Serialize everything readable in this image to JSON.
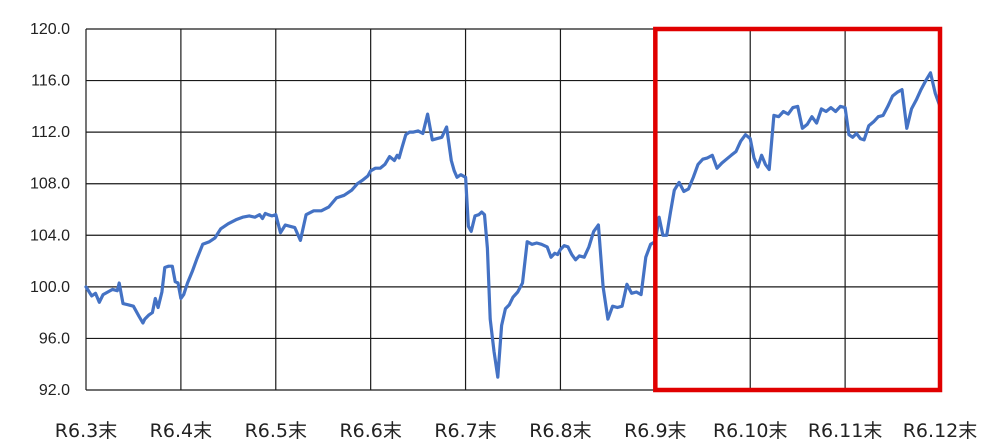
{
  "chart_data": {
    "type": "line",
    "title": "",
    "xlabel": "",
    "ylabel": "",
    "ylim": [
      92,
      120
    ],
    "y_ticks": [
      "92.0",
      "96.0",
      "100.0",
      "104.0",
      "108.0",
      "112.0",
      "116.0",
      "120.0"
    ],
    "x_ticks": [
      "R6.3末",
      "R6.4末",
      "R6.5末",
      "R6.6末",
      "R6.7末",
      "R6.8末",
      "R6.9末",
      "R6.10末",
      "R6.11末",
      "R6.12末"
    ],
    "grid": true,
    "line_color": "#4472c4",
    "highlight_color": "#e00000",
    "highlight_range": [
      "R6.9末",
      "R6.12末"
    ],
    "series": [
      {
        "x": [
          0,
          0.06,
          0.1,
          0.14,
          0.18,
          0.23,
          0.28,
          0.33,
          0.35,
          0.39,
          0.45,
          0.5,
          0.56,
          0.6,
          0.62,
          0.66,
          0.7,
          0.73,
          0.76,
          0.8,
          0.83,
          0.87,
          0.91,
          0.94,
          0.97,
          1.0,
          1.03,
          1.07,
          1.12,
          1.17,
          1.23,
          1.3,
          1.36,
          1.42,
          1.5,
          1.58,
          1.65,
          1.72,
          1.78,
          1.83,
          1.86,
          1.89,
          1.92,
          1.96,
          2.0,
          2.05,
          2.1,
          2.15,
          2.2,
          2.26,
          2.32,
          2.4,
          2.48,
          2.56,
          2.64,
          2.72,
          2.8,
          2.86,
          2.92,
          2.97,
          3.0,
          3.05,
          3.1,
          3.15,
          3.2,
          3.25,
          3.28,
          3.3,
          3.33,
          3.37,
          3.41,
          3.45,
          3.5,
          3.55,
          3.6,
          3.65,
          3.7,
          3.75,
          3.8,
          3.85,
          3.88,
          3.91,
          3.95,
          4.0,
          4.03,
          4.06,
          4.1,
          4.14,
          4.17,
          4.2,
          4.23,
          4.26,
          4.3,
          4.34,
          4.38,
          4.42,
          4.46,
          4.5,
          4.55,
          4.6,
          4.65,
          4.7,
          4.75,
          4.8,
          4.86,
          4.9,
          4.94,
          4.97,
          5.0,
          5.04,
          5.08,
          5.12,
          5.16,
          5.2,
          5.25,
          5.3,
          5.35,
          5.4,
          5.45,
          5.5,
          5.55,
          5.6,
          5.65,
          5.7,
          5.75,
          5.8,
          5.85,
          5.9,
          5.95,
          6.0,
          6.04,
          6.08,
          6.12,
          6.16,
          6.2,
          6.25,
          6.3,
          6.35,
          6.4,
          6.45,
          6.5,
          6.55,
          6.6,
          6.65,
          6.7,
          6.75,
          6.8,
          6.85,
          6.9,
          6.95,
          7.0,
          7.04,
          7.08,
          7.12,
          7.16,
          7.2,
          7.25,
          7.3,
          7.35,
          7.4,
          7.45,
          7.5,
          7.55,
          7.6,
          7.65,
          7.7,
          7.75,
          7.8,
          7.85,
          7.9,
          7.95,
          8.0,
          8.04,
          8.08,
          8.12,
          8.16,
          8.2,
          8.25,
          8.3,
          8.35,
          8.4,
          8.45,
          8.5,
          8.55,
          8.6,
          8.65,
          8.7,
          8.75,
          8.8,
          8.85,
          8.9,
          8.95,
          9.0
        ],
        "values": [
          100.0,
          99.3,
          99.5,
          98.8,
          99.4,
          99.6,
          99.8,
          99.7,
          100.3,
          98.7,
          98.6,
          98.5,
          97.7,
          97.2,
          97.5,
          97.8,
          98.0,
          99.1,
          98.4,
          99.6,
          101.5,
          101.6,
          101.6,
          100.4,
          100.3,
          99.1,
          99.4,
          100.3,
          101.2,
          102.2,
          103.3,
          103.5,
          103.8,
          104.5,
          104.9,
          105.2,
          105.4,
          105.5,
          105.4,
          105.6,
          105.3,
          105.7,
          105.6,
          105.5,
          105.6,
          104.2,
          104.8,
          104.7,
          104.6,
          103.6,
          105.6,
          105.9,
          105.9,
          106.2,
          106.9,
          107.1,
          107.5,
          108.0,
          108.3,
          108.6,
          109.0,
          109.2,
          109.2,
          109.5,
          110.1,
          109.8,
          110.2,
          110.0,
          110.8,
          111.8,
          112.0,
          112.0,
          112.1,
          111.9,
          113.4,
          111.4,
          111.5,
          111.6,
          112.4,
          109.8,
          109.0,
          108.5,
          108.7,
          108.5,
          104.7,
          104.3,
          105.5,
          105.6,
          105.8,
          105.6,
          103.0,
          97.5,
          95.0,
          93.0,
          97.0,
          98.3,
          98.6,
          99.2,
          99.6,
          100.3,
          103.5,
          103.3,
          103.4,
          103.3,
          103.1,
          102.3,
          102.6,
          102.5,
          102.9,
          103.2,
          103.1,
          102.5,
          102.1,
          102.4,
          102.3,
          103.1,
          104.3,
          104.8,
          100.0,
          97.5,
          98.5,
          98.4,
          98.5,
          100.2,
          99.5,
          99.6,
          99.4,
          102.3,
          103.3,
          103.5,
          105.4,
          104.0,
          104.0,
          105.8,
          107.5,
          108.1,
          107.4,
          107.6,
          108.5,
          109.5,
          109.9,
          110.0,
          110.2,
          109.2,
          109.6,
          109.9,
          110.2,
          110.5,
          111.3,
          111.8,
          111.5,
          110.0,
          109.3,
          110.2,
          109.5,
          109.1,
          113.3,
          113.2,
          113.6,
          113.4,
          113.9,
          114.0,
          112.3,
          112.6,
          113.2,
          112.7,
          113.8,
          113.6,
          113.9,
          113.6,
          114.0,
          113.9,
          111.8,
          111.6,
          111.9,
          111.5,
          111.4,
          112.5,
          112.8,
          113.2,
          113.3,
          114.0,
          114.8,
          115.1,
          115.3,
          112.3,
          113.8,
          114.5,
          115.3,
          116.0,
          116.6,
          115.0,
          114.0
        ]
      }
    ]
  }
}
